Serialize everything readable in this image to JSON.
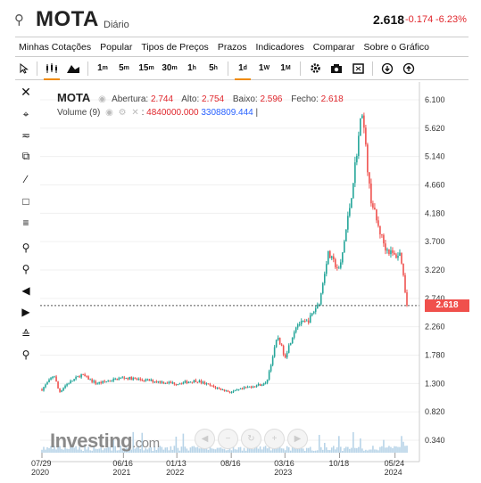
{
  "header": {
    "search_icon": "search-icon",
    "symbol": "MOTA",
    "interval": "Diário",
    "price": "2.618",
    "change": "-0.174",
    "change_pct": "-6.23%"
  },
  "menu": [
    "Minhas Cotações",
    "Popular",
    "Tipos de Preços",
    "Prazos",
    "Indicadores",
    "Comparar",
    "Sobre o Gráfico"
  ],
  "toolbar": {
    "timeframes": [
      {
        "base": "1",
        "sup": "m"
      },
      {
        "base": "5",
        "sup": "m"
      },
      {
        "base": "15",
        "sup": "m"
      },
      {
        "base": "30",
        "sup": "m"
      },
      {
        "base": "1",
        "sup": "h"
      },
      {
        "base": "5",
        "sup": "h"
      },
      {
        "base": "1",
        "sup": "d"
      },
      {
        "base": "1",
        "sup": "W"
      },
      {
        "base": "1",
        "sup": "M"
      }
    ],
    "active_timeframe": "1d"
  },
  "legend": {
    "symbol": "MOTA",
    "open_label": "Abertura:",
    "open": "2.744",
    "high_label": "Alto:",
    "high": "2.754",
    "low_label": "Baixo:",
    "low": "2.596",
    "close_label": "Fecho:",
    "close": "2.618",
    "volume_label": "Volume (9)",
    "volume_value": "4840000.000",
    "volume_ma": "3308809.444"
  },
  "watermark": {
    "brand": "Investing",
    "suffix": ".com"
  },
  "colors": {
    "up": "#26a69a",
    "down": "#ef5350",
    "accent": "#f08a00",
    "price_tag": "#f0504c",
    "volume": "#b8d4e8"
  },
  "chart_data": {
    "type": "candlestick",
    "y_ticks": [
      "6.100",
      "5.620",
      "5.140",
      "4.660",
      "4.180",
      "3.700",
      "3.220",
      "2.740",
      "2.260",
      "1.780",
      "1.300",
      "0.820",
      "0.340"
    ],
    "x_ticks": [
      {
        "date": "07/29",
        "year": "2020"
      },
      {
        "date": "06/16",
        "year": "2021"
      },
      {
        "date": "01/13",
        "year": "2022"
      },
      {
        "date": "08/16",
        "year": ""
      },
      {
        "date": "03/16",
        "year": "2023"
      },
      {
        "date": "10/18",
        "year": ""
      },
      {
        "date": "05/24",
        "year": "2024"
      }
    ],
    "last_price": "2.618",
    "ylim": [
      0.1,
      6.3
    ],
    "series_close": [
      {
        "date": "2020-07-29",
        "close": 1.2
      },
      {
        "date": "2020-09-15",
        "close": 1.45
      },
      {
        "date": "2020-10-05",
        "close": 1.15
      },
      {
        "date": "2020-11-01",
        "close": 1.28
      },
      {
        "date": "2021-01-01",
        "close": 1.45
      },
      {
        "date": "2021-03-01",
        "close": 1.3
      },
      {
        "date": "2021-06-16",
        "close": 1.4
      },
      {
        "date": "2021-09-01",
        "close": 1.36
      },
      {
        "date": "2022-01-13",
        "close": 1.3
      },
      {
        "date": "2022-04-01",
        "close": 1.35
      },
      {
        "date": "2022-06-01",
        "close": 1.25
      },
      {
        "date": "2022-08-16",
        "close": 1.15
      },
      {
        "date": "2022-11-01",
        "close": 1.25
      },
      {
        "date": "2023-01-01",
        "close": 1.3
      },
      {
        "date": "2023-02-15",
        "close": 2.1
      },
      {
        "date": "2023-03-16",
        "close": 1.75
      },
      {
        "date": "2023-05-01",
        "close": 2.3
      },
      {
        "date": "2023-06-15",
        "close": 2.35
      },
      {
        "date": "2023-08-01",
        "close": 2.7
      },
      {
        "date": "2023-09-01",
        "close": 3.5
      },
      {
        "date": "2023-10-18",
        "close": 3.2
      },
      {
        "date": "2023-12-01",
        "close": 4.4
      },
      {
        "date": "2024-01-15",
        "close": 5.95
      },
      {
        "date": "2024-02-15",
        "close": 4.5
      },
      {
        "date": "2024-03-15",
        "close": 4.0
      },
      {
        "date": "2024-04-15",
        "close": 3.6
      },
      {
        "date": "2024-05-24",
        "close": 3.45
      },
      {
        "date": "2024-06-15",
        "close": 3.5
      },
      {
        "date": "2024-07-10",
        "close": 2.62
      }
    ]
  }
}
